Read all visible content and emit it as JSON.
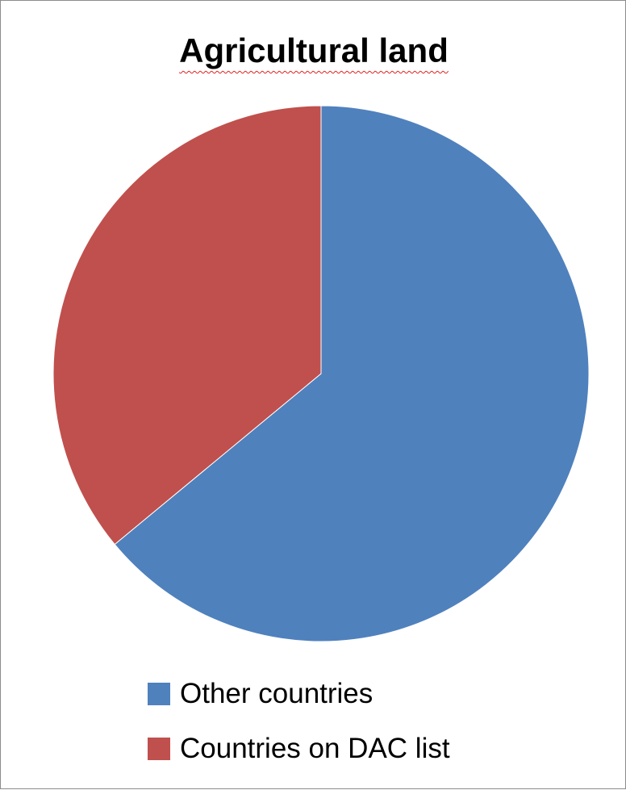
{
  "chart_data": {
    "type": "pie",
    "title": "Agricultural land",
    "series": [
      {
        "name": "Other countries",
        "value": 0.64,
        "color": "#4f81bd"
      },
      {
        "name": "Countries on DAC list",
        "value": 0.36,
        "color": "#c0504d"
      }
    ],
    "start_angle_deg": 0,
    "direction": "clockwise",
    "legend_position": "bottom"
  }
}
